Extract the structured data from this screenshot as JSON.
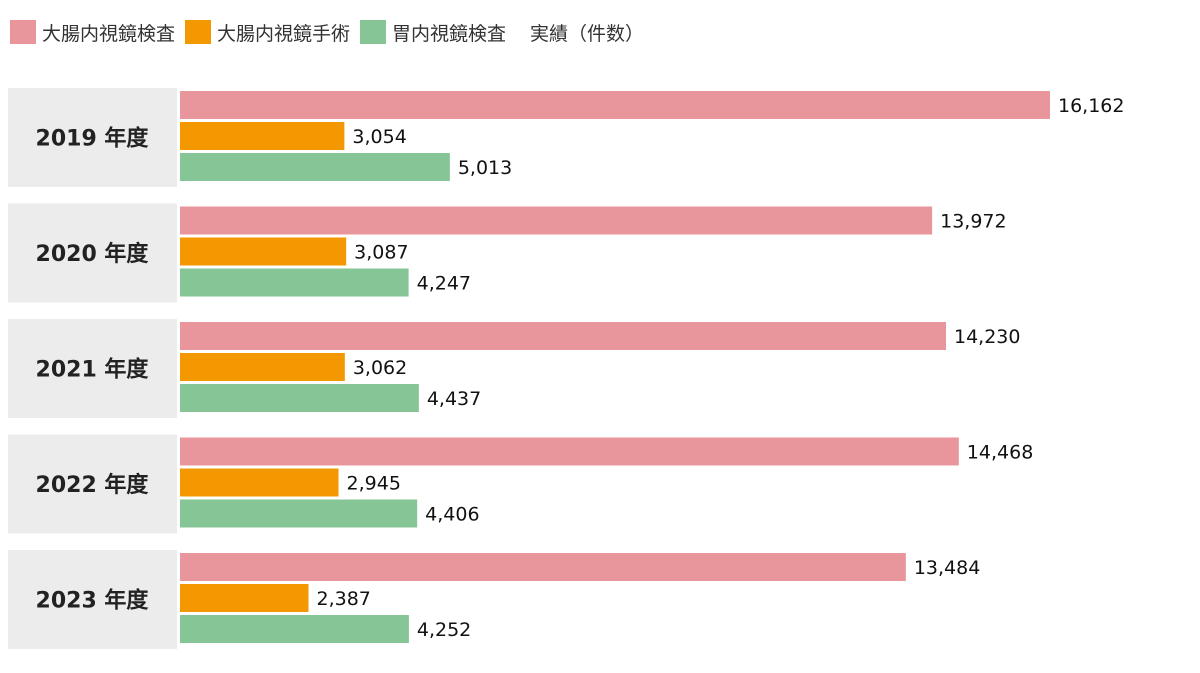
{
  "chart_data": {
    "type": "bar",
    "orientation": "horizontal",
    "title": "実績（件数）",
    "categories": [
      "2019 年度",
      "2020 年度",
      "2021 年度",
      "2022 年度",
      "2023 年度"
    ],
    "series": [
      {
        "name": "大腸内視鏡検査",
        "color": "#e8959c",
        "values": [
          16162,
          13972,
          14230,
          14468,
          13484
        ],
        "labels": [
          "16,162",
          "13,972",
          "14,230",
          "14,468",
          "13,484"
        ]
      },
      {
        "name": "大腸内視鏡手術",
        "color": "#f39800",
        "values": [
          3054,
          3087,
          3062,
          2945,
          2387
        ],
        "labels": [
          "3,054",
          "3,087",
          "3,062",
          "2,945",
          "2,387"
        ]
      },
      {
        "name": "胃内視鏡検査",
        "color": "#86c595",
        "values": [
          5013,
          4247,
          4437,
          4406,
          4252
        ],
        "labels": [
          "5,013",
          "4,247",
          "4,437",
          "4,406",
          "4,252"
        ]
      }
    ],
    "xlim": [
      0,
      16162
    ],
    "grid": false,
    "legend_position": "top-left"
  }
}
